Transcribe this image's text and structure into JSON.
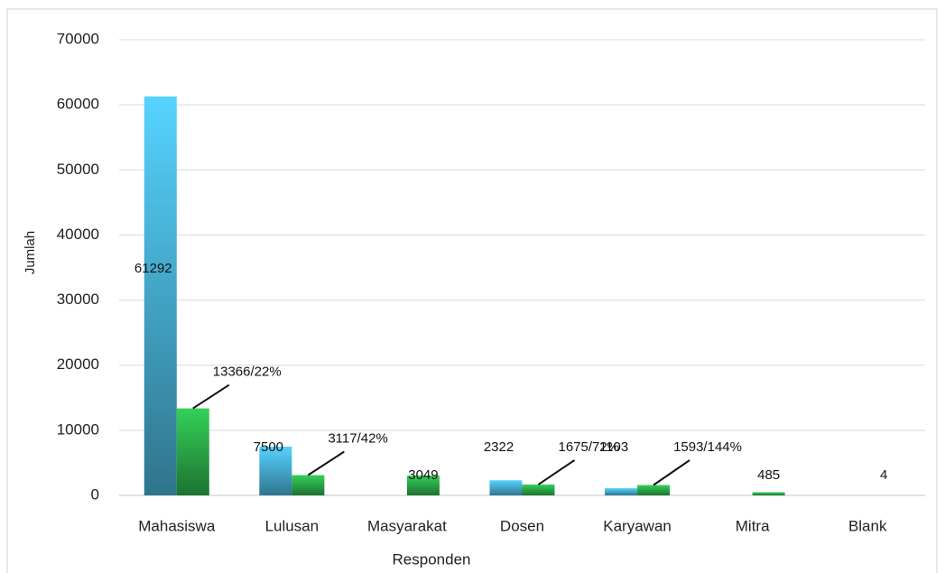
{
  "chart_data": {
    "type": "bar",
    "x_label": "Responden",
    "y_label": "Jumlah",
    "categories": [
      "Mahasiswa",
      "Lulusan",
      "Masyarakat",
      "Dosen",
      "Karyawan",
      "Mitra",
      "Blank"
    ],
    "series": [
      {
        "color": "#56d3ff",
        "values": [
          61292,
          7500,
          null,
          2322,
          1103,
          null,
          null
        ]
      },
      {
        "color": "#34d058",
        "values": [
          13366,
          3117,
          3049,
          1675,
          1593,
          485,
          4
        ],
        "value_labels": [
          "13366/22%",
          "3117/42%",
          "3049",
          "1675/72%",
          "1593/144%",
          "485",
          "4"
        ]
      }
    ],
    "ylim": [
      0,
      70000
    ],
    "yticks": [
      0,
      10000,
      20000,
      30000,
      40000,
      50000,
      60000,
      70000
    ],
    "grid": true
  }
}
